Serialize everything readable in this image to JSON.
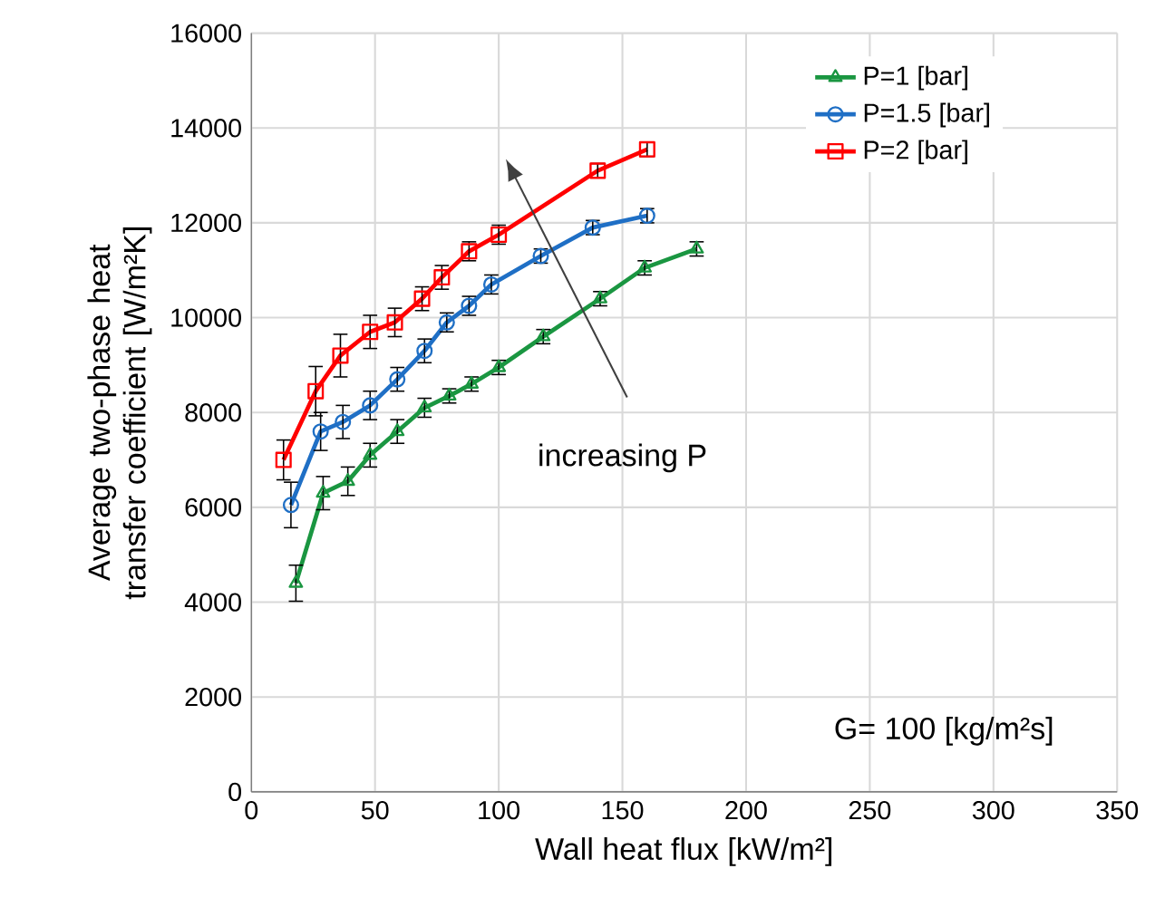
{
  "chart_data": {
    "type": "line",
    "xlabel": "Wall heat flux [kW/m²]",
    "ylabel": "Average two-phase heat transfer coefficient [W/m²K]",
    "xlim": [
      0,
      350
    ],
    "xticks": [
      0,
      50,
      100,
      150,
      200,
      250,
      300,
      350
    ],
    "ylim": [
      0,
      16000
    ],
    "yticks": [
      0,
      2000,
      4000,
      6000,
      8000,
      10000,
      12000,
      14000,
      16000
    ],
    "grid": true,
    "legend": "top right",
    "annotations": [
      "increasing P",
      "G= 100 [kg/m²s]"
    ],
    "series": [
      {
        "name": "P=1 [bar]",
        "color": "#1a9641",
        "marker": "triangle",
        "x": [
          18,
          29,
          39,
          48,
          59,
          70,
          80,
          89,
          100,
          118,
          141,
          159,
          180
        ],
        "values": [
          4400,
          6300,
          6550,
          7100,
          7600,
          8100,
          8350,
          8600,
          8950,
          9600,
          10400,
          11050,
          11450
        ],
        "errors": [
          380,
          350,
          300,
          250,
          250,
          200,
          150,
          150,
          150,
          150,
          150,
          150,
          150
        ]
      },
      {
        "name": "P=1.5 [bar]",
        "color": "#1f6fc5",
        "marker": "circle",
        "x": [
          16,
          28,
          37,
          48,
          59,
          70,
          79,
          88,
          97,
          117,
          138,
          160
        ],
        "values": [
          6050,
          7600,
          7800,
          8150,
          8700,
          9300,
          9900,
          10250,
          10700,
          11300,
          11900,
          12150
        ],
        "errors": [
          480,
          400,
          350,
          300,
          250,
          250,
          200,
          200,
          200,
          150,
          150,
          150
        ]
      },
      {
        "name": "P=2 [bar]",
        "color": "#ff0000",
        "marker": "square",
        "x": [
          13,
          26,
          36,
          48,
          58,
          69,
          77,
          88,
          100,
          140,
          160
        ],
        "values": [
          7000,
          8450,
          9200,
          9700,
          9900,
          10400,
          10850,
          11400,
          11750,
          13100,
          13550
        ],
        "errors": [
          420,
          520,
          450,
          350,
          300,
          250,
          250,
          200,
          200,
          150,
          150
        ]
      }
    ]
  }
}
